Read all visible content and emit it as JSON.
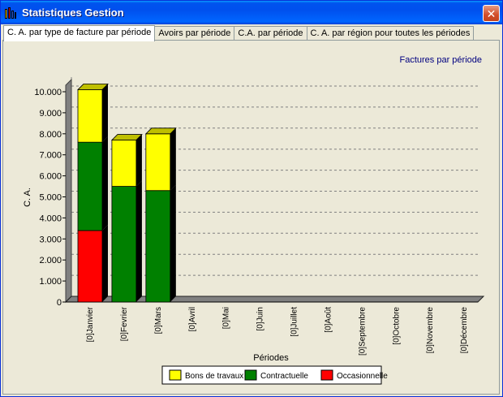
{
  "window": {
    "title": "Statistiques Gestion"
  },
  "tabs": [
    {
      "label": "C. A. par type de facture par période",
      "active": true
    },
    {
      "label": "Avoirs par période",
      "active": false
    },
    {
      "label": "C.A. par période",
      "active": false
    },
    {
      "label": "C. A. par région pour toutes les périodes",
      "active": false
    }
  ],
  "chart_data": {
    "type": "bar",
    "stacked": true,
    "title": "Factures par période",
    "xlabel": "Périodes",
    "ylabel": "C. A.",
    "ylim": [
      0,
      10000
    ],
    "yticks": [
      "0",
      "1.000",
      "2.000",
      "3.000",
      "4.000",
      "5.000",
      "6.000",
      "7.000",
      "8.000",
      "9.000",
      "10.000"
    ],
    "categories": [
      "[0]Janvier",
      "[0]Fevrier",
      "[0]Mars",
      "[0]Avril",
      "[0]Mai",
      "[0]Juin",
      "[0]Juillet",
      "[0]Août",
      "[0]Septembre",
      "[0]Octobre",
      "[0]Novembre",
      "[0]Décembre"
    ],
    "series": [
      {
        "name": "Occasionnelle",
        "color": "#ff0000",
        "values": [
          3400,
          0,
          0,
          0,
          0,
          0,
          0,
          0,
          0,
          0,
          0,
          0
        ]
      },
      {
        "name": "Contractuelle",
        "color": "#008000",
        "values": [
          4200,
          5500,
          5300,
          0,
          0,
          0,
          0,
          0,
          0,
          0,
          0,
          0
        ]
      },
      {
        "name": "Bons de travaux",
        "color": "#ffff00",
        "values": [
          2500,
          2200,
          2700,
          0,
          0,
          0,
          0,
          0,
          0,
          0,
          0,
          0
        ]
      }
    ],
    "legend": {
      "placement": "bottom",
      "order": [
        "Bons de travaux",
        "Contractuelle",
        "Occasionnelle"
      ]
    },
    "grid": true
  },
  "colors": {
    "title_color": "#000080",
    "gridline": "#808080",
    "floor": "#808080"
  }
}
